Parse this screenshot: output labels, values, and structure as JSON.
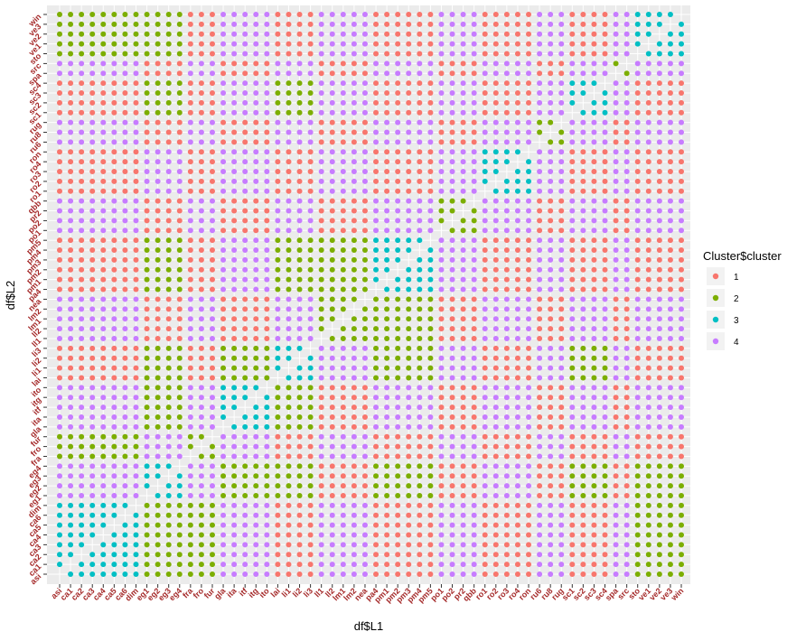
{
  "chart_data": {
    "type": "scatter",
    "title": "",
    "xlabel": "df$L1",
    "ylabel": "df$L2",
    "grid": true,
    "legend_position": "right",
    "legend": {
      "title": "Cluster$cluster",
      "entries": [
        {
          "label": "1",
          "color": "#f8766d"
        },
        {
          "label": "2",
          "color": "#7cae00"
        },
        {
          "label": "3",
          "color": "#00bfc4"
        },
        {
          "label": "4",
          "color": "#c77cff"
        }
      ]
    },
    "categories": [
      "asi",
      "ca1",
      "ca2",
      "ca3",
      "ca4",
      "ca5",
      "ca6",
      "dim",
      "eg1",
      "eg2",
      "eg3",
      "eg4",
      "fra",
      "fro",
      "fur",
      "gla",
      "ita",
      "itf",
      "itg",
      "ito",
      "lai",
      "li1",
      "li2",
      "li3",
      "ll1",
      "ll2",
      "lm1",
      "lm2",
      "nea",
      "pa4",
      "pm1",
      "pm2",
      "pm3",
      "pm4",
      "pm5",
      "po1",
      "po2",
      "pr2",
      "qbb",
      "ro1",
      "ro2",
      "ro3",
      "ro4",
      "ron",
      "ru6",
      "ru8",
      "rug",
      "sc1",
      "sc2",
      "sc3",
      "sc4",
      "spa",
      "src",
      "sto",
      "ve1",
      "ve2",
      "ve3",
      "win"
    ],
    "x_tick_labels": [
      "asi",
      "ca1",
      "ca2",
      "ca3",
      "ca4",
      "ca5",
      "ca6",
      "dim",
      "eg1",
      "eg2",
      "eg3",
      "eg4",
      "fra",
      "fro",
      "fur",
      "gla",
      "ita",
      "itf",
      "itg",
      "ito",
      "lai",
      "li1",
      "li2",
      "li3",
      "ll1",
      "ll2",
      "lm1",
      "lm2",
      "nea",
      "pa4",
      "pm1",
      "pm2",
      "pm3",
      "pm4",
      "pm5",
      "po1",
      "po2",
      "pr2",
      "qbb",
      "ro1",
      "ro2",
      "ro3",
      "ro4",
      "ron",
      "ru6",
      "ru8",
      "rug",
      "sc1",
      "sc2",
      "sc3",
      "sc4",
      "spa",
      "src",
      "sto",
      "ve1",
      "ve2",
      "ve3",
      "win"
    ],
    "y_tick_labels": [
      "asi",
      "ca1",
      "ca2",
      "ca3",
      "ca4",
      "ca5",
      "ca6",
      "dim",
      "eg1",
      "eg2",
      "eg3",
      "eg4",
      "fra",
      "fro",
      "fur",
      "gla",
      "ita",
      "itf",
      "itg",
      "ito",
      "lai",
      "li1",
      "li2",
      "li3",
      "ll1",
      "ll2",
      "lm1",
      "lm2",
      "nea",
      "pa4",
      "pm1",
      "pm2",
      "pm3",
      "pm4",
      "pm5",
      "po1",
      "po2",
      "pr2",
      "qbb",
      "ro1",
      "ro2",
      "ro3",
      "ro4",
      "ron",
      "ru6",
      "ru8",
      "rug",
      "sc1",
      "sc2",
      "sc3",
      "sc4",
      "spa",
      "src",
      "sto",
      "ve1",
      "ve2",
      "ve3",
      "win"
    ],
    "groups": [
      {
        "indices": [
          0,
          1,
          2,
          3,
          4,
          5,
          6,
          7
        ],
        "within": 3,
        "against": {
          "1": 4,
          "2": 2
        },
        "default": 1
      },
      {
        "indices": [
          8,
          9,
          10,
          11
        ],
        "within": 3,
        "against": {
          "0": 2,
          "4": 2
        },
        "default": 4
      },
      {
        "indices": [
          12,
          13,
          14
        ],
        "within": 2,
        "against": {},
        "default": 1
      },
      {
        "indices": [
          15,
          16,
          17,
          18,
          19
        ],
        "within": 3,
        "against": {
          "1": 2,
          "4": 2
        },
        "default": 4
      },
      {
        "indices": [
          20,
          21,
          22,
          23
        ],
        "within": 3,
        "against": {
          "3": 2
        },
        "default": 4
      },
      {
        "indices": [
          24,
          25,
          26,
          27,
          28
        ],
        "within": 2,
        "against": {
          "0": 4,
          "6": 2
        },
        "default": 4
      },
      {
        "indices": [
          29,
          30,
          31,
          32,
          33,
          34
        ],
        "within": 3,
        "against": {
          "1": 2,
          "4": 2
        },
        "default": 4
      },
      {
        "indices": [
          35,
          36,
          37,
          38
        ],
        "within": 2,
        "against": {},
        "default": 1
      },
      {
        "indices": [
          39,
          40,
          41,
          42,
          43
        ],
        "within": 3,
        "against": {},
        "default": 4
      },
      {
        "indices": [
          44,
          45,
          46
        ],
        "within": 2,
        "against": {},
        "default": 1
      },
      {
        "indices": [
          47,
          48,
          49,
          50
        ],
        "within": 3,
        "against": {
          "1": 2,
          "4": 2
        },
        "default": 4
      },
      {
        "indices": [
          51,
          52
        ],
        "within": 2,
        "against": {},
        "default": 1
      },
      {
        "indices": [
          53,
          54,
          55,
          56,
          57
        ],
        "within": 3,
        "against": {
          "0": 2,
          "1": 2
        },
        "default": 4
      }
    ],
    "points_note": "Pairwise grid: each (L1, L2) pair of categories is colored by Cluster$cluster value 1-4; diagonal cells (L1 = L2) have no point."
  }
}
